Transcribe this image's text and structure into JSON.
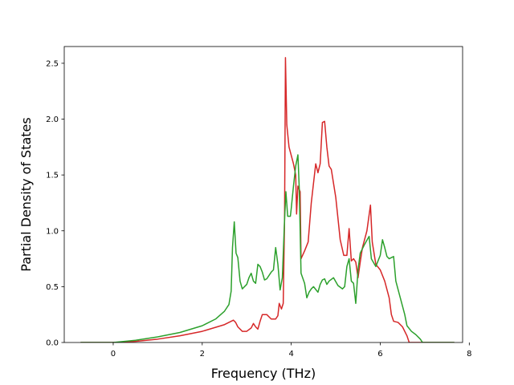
{
  "chart_data": {
    "type": "line",
    "title": "",
    "xlabel": "Frequency (THz)",
    "ylabel": "Partial Density of States",
    "xlim": [
      -1.1,
      7.85
    ],
    "ylim": [
      0.0,
      2.65
    ],
    "xticks": [
      0,
      2,
      4,
      6,
      8
    ],
    "xtick_labels": [
      "0",
      "2",
      "4",
      "6",
      "8"
    ],
    "yticks": [
      0.0,
      0.5,
      1.0,
      1.5,
      2.0,
      2.5
    ],
    "ytick_labels": [
      "0.0",
      "0.5",
      "1.0",
      "1.5",
      "2.0",
      "2.5"
    ],
    "grid": false,
    "legend": "none",
    "series": [
      {
        "color": "#d62728",
        "points": [
          [
            -0.72,
            0.0
          ],
          [
            0.0,
            0.0
          ],
          [
            0.5,
            0.01
          ],
          [
            1.0,
            0.03
          ],
          [
            1.5,
            0.06
          ],
          [
            2.0,
            0.1
          ],
          [
            2.5,
            0.16
          ],
          [
            2.65,
            0.19
          ],
          [
            2.7,
            0.2
          ],
          [
            2.75,
            0.18
          ],
          [
            2.8,
            0.14
          ],
          [
            2.9,
            0.1
          ],
          [
            3.0,
            0.1
          ],
          [
            3.1,
            0.13
          ],
          [
            3.15,
            0.17
          ],
          [
            3.2,
            0.14
          ],
          [
            3.25,
            0.12
          ],
          [
            3.3,
            0.19
          ],
          [
            3.35,
            0.25
          ],
          [
            3.45,
            0.25
          ],
          [
            3.55,
            0.21
          ],
          [
            3.65,
            0.21
          ],
          [
            3.7,
            0.24
          ],
          [
            3.73,
            0.35
          ],
          [
            3.78,
            0.3
          ],
          [
            3.82,
            0.35
          ],
          [
            3.85,
            1.1
          ],
          [
            3.87,
            2.55
          ],
          [
            3.9,
            1.95
          ],
          [
            3.95,
            1.75
          ],
          [
            4.05,
            1.6
          ],
          [
            4.1,
            1.5
          ],
          [
            4.12,
            1.15
          ],
          [
            4.15,
            1.4
          ],
          [
            4.2,
            1.35
          ],
          [
            4.22,
            0.75
          ],
          [
            4.3,
            0.82
          ],
          [
            4.38,
            0.9
          ],
          [
            4.45,
            1.25
          ],
          [
            4.55,
            1.6
          ],
          [
            4.6,
            1.52
          ],
          [
            4.65,
            1.6
          ],
          [
            4.7,
            1.97
          ],
          [
            4.75,
            1.98
          ],
          [
            4.8,
            1.75
          ],
          [
            4.85,
            1.58
          ],
          [
            4.9,
            1.55
          ],
          [
            5.0,
            1.3
          ],
          [
            5.1,
            0.92
          ],
          [
            5.18,
            0.78
          ],
          [
            5.25,
            0.78
          ],
          [
            5.3,
            1.02
          ],
          [
            5.35,
            0.73
          ],
          [
            5.4,
            0.75
          ],
          [
            5.45,
            0.72
          ],
          [
            5.5,
            0.58
          ],
          [
            5.55,
            0.72
          ],
          [
            5.6,
            0.85
          ],
          [
            5.7,
            1.0
          ],
          [
            5.78,
            1.23
          ],
          [
            5.82,
            0.9
          ],
          [
            5.9,
            0.7
          ],
          [
            6.0,
            0.65
          ],
          [
            6.1,
            0.55
          ],
          [
            6.2,
            0.4
          ],
          [
            6.25,
            0.25
          ],
          [
            6.3,
            0.19
          ],
          [
            6.4,
            0.18
          ],
          [
            6.5,
            0.14
          ],
          [
            6.6,
            0.06
          ],
          [
            6.65,
            0.0
          ],
          [
            7.65,
            0.0
          ]
        ]
      },
      {
        "color": "#2ca02c",
        "points": [
          [
            -0.72,
            0.0
          ],
          [
            0.0,
            0.0
          ],
          [
            0.5,
            0.02
          ],
          [
            1.0,
            0.05
          ],
          [
            1.5,
            0.09
          ],
          [
            2.0,
            0.15
          ],
          [
            2.3,
            0.21
          ],
          [
            2.5,
            0.28
          ],
          [
            2.6,
            0.34
          ],
          [
            2.65,
            0.46
          ],
          [
            2.68,
            0.85
          ],
          [
            2.72,
            1.08
          ],
          [
            2.76,
            0.8
          ],
          [
            2.8,
            0.76
          ],
          [
            2.85,
            0.55
          ],
          [
            2.9,
            0.48
          ],
          [
            3.0,
            0.52
          ],
          [
            3.05,
            0.58
          ],
          [
            3.1,
            0.62
          ],
          [
            3.15,
            0.55
          ],
          [
            3.2,
            0.53
          ],
          [
            3.25,
            0.7
          ],
          [
            3.3,
            0.68
          ],
          [
            3.35,
            0.63
          ],
          [
            3.4,
            0.56
          ],
          [
            3.45,
            0.57
          ],
          [
            3.55,
            0.63
          ],
          [
            3.6,
            0.65
          ],
          [
            3.65,
            0.85
          ],
          [
            3.7,
            0.7
          ],
          [
            3.75,
            0.47
          ],
          [
            3.8,
            0.58
          ],
          [
            3.85,
            1.1
          ],
          [
            3.88,
            1.35
          ],
          [
            3.92,
            1.13
          ],
          [
            3.98,
            1.13
          ],
          [
            4.0,
            1.2
          ],
          [
            4.05,
            1.4
          ],
          [
            4.1,
            1.58
          ],
          [
            4.15,
            1.68
          ],
          [
            4.18,
            1.38
          ],
          [
            4.22,
            0.62
          ],
          [
            4.3,
            0.53
          ],
          [
            4.35,
            0.4
          ],
          [
            4.4,
            0.45
          ],
          [
            4.45,
            0.48
          ],
          [
            4.5,
            0.5
          ],
          [
            4.6,
            0.45
          ],
          [
            4.65,
            0.52
          ],
          [
            4.7,
            0.56
          ],
          [
            4.75,
            0.57
          ],
          [
            4.8,
            0.52
          ],
          [
            4.85,
            0.55
          ],
          [
            4.95,
            0.58
          ],
          [
            5.05,
            0.51
          ],
          [
            5.15,
            0.48
          ],
          [
            5.2,
            0.5
          ],
          [
            5.25,
            0.68
          ],
          [
            5.3,
            0.75
          ],
          [
            5.35,
            0.55
          ],
          [
            5.4,
            0.53
          ],
          [
            5.45,
            0.35
          ],
          [
            5.5,
            0.65
          ],
          [
            5.55,
            0.8
          ],
          [
            5.65,
            0.88
          ],
          [
            5.72,
            0.93
          ],
          [
            5.75,
            0.95
          ],
          [
            5.8,
            0.75
          ],
          [
            5.9,
            0.68
          ],
          [
            6.0,
            0.78
          ],
          [
            6.05,
            0.92
          ],
          [
            6.1,
            0.85
          ],
          [
            6.15,
            0.77
          ],
          [
            6.2,
            0.75
          ],
          [
            6.3,
            0.77
          ],
          [
            6.35,
            0.55
          ],
          [
            6.45,
            0.4
          ],
          [
            6.55,
            0.25
          ],
          [
            6.6,
            0.15
          ],
          [
            6.7,
            0.1
          ],
          [
            6.8,
            0.07
          ],
          [
            6.9,
            0.03
          ],
          [
            6.95,
            0.0
          ],
          [
            7.65,
            0.0
          ]
        ]
      }
    ]
  }
}
